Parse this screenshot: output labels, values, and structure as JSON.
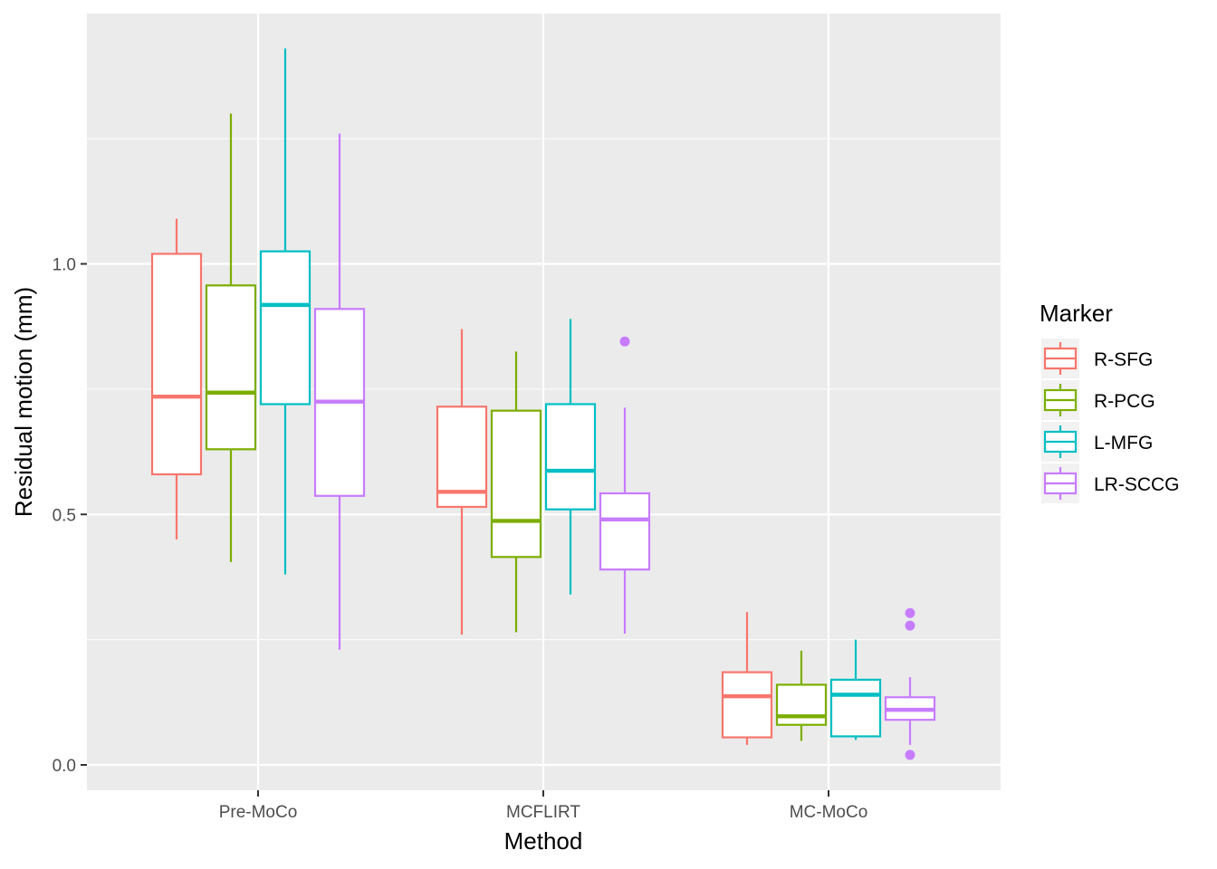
{
  "chart_data": {
    "type": "boxplot",
    "title": "",
    "xlabel": "Method",
    "ylabel": "Residual motion (mm)",
    "ylim": [
      -0.05,
      1.5
    ],
    "y_ticks": [
      {
        "value": 0.0,
        "label": "0.0"
      },
      {
        "value": 0.5,
        "label": "0.5"
      },
      {
        "value": 1.0,
        "label": "1.0"
      }
    ],
    "categories": [
      "Pre-MoCo",
      "MCFLIRT",
      "MC-MoCo"
    ],
    "grid": true,
    "legend": {
      "title": "Marker",
      "position": "right"
    },
    "series": [
      {
        "name": "R-SFG",
        "color": "#F8766D",
        "boxes": [
          {
            "min": 0.45,
            "q1": 0.58,
            "median": 0.735,
            "q3": 1.02,
            "max": 1.09,
            "outliers": []
          },
          {
            "min": 0.26,
            "q1": 0.515,
            "median": 0.545,
            "q3": 0.715,
            "max": 0.87,
            "outliers": []
          },
          {
            "min": 0.04,
            "q1": 0.055,
            "median": 0.137,
            "q3": 0.185,
            "max": 0.305,
            "outliers": []
          }
        ]
      },
      {
        "name": "R-PCG",
        "color": "#7CAE00",
        "boxes": [
          {
            "min": 0.405,
            "q1": 0.63,
            "median": 0.743,
            "q3": 0.957,
            "max": 1.3,
            "outliers": []
          },
          {
            "min": 0.265,
            "q1": 0.415,
            "median": 0.487,
            "q3": 0.707,
            "max": 0.825,
            "outliers": []
          },
          {
            "min": 0.048,
            "q1": 0.08,
            "median": 0.097,
            "q3": 0.16,
            "max": 0.228,
            "outliers": []
          }
        ]
      },
      {
        "name": "L-MFG",
        "color": "#00BFC4",
        "boxes": [
          {
            "min": 0.38,
            "q1": 0.72,
            "median": 0.918,
            "q3": 1.025,
            "max": 1.43,
            "outliers": []
          },
          {
            "min": 0.34,
            "q1": 0.51,
            "median": 0.587,
            "q3": 0.72,
            "max": 0.89,
            "outliers": []
          },
          {
            "min": 0.05,
            "q1": 0.057,
            "median": 0.14,
            "q3": 0.17,
            "max": 0.25,
            "outliers": []
          }
        ]
      },
      {
        "name": "LR-SCCG",
        "color": "#C77CFF",
        "boxes": [
          {
            "min": 0.23,
            "q1": 0.537,
            "median": 0.725,
            "q3": 0.91,
            "max": 1.26,
            "outliers": []
          },
          {
            "min": 0.262,
            "q1": 0.39,
            "median": 0.49,
            "q3": 0.542,
            "max": 0.713,
            "outliers": [
              0.845
            ]
          },
          {
            "min": 0.04,
            "q1": 0.09,
            "median": 0.11,
            "q3": 0.135,
            "max": 0.175,
            "outliers": [
              0.303,
              0.278,
              0.02
            ]
          }
        ]
      }
    ]
  }
}
